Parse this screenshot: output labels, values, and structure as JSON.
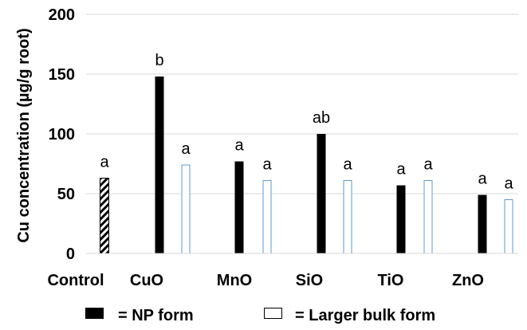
{
  "chart_data": {
    "type": "bar",
    "title": "",
    "xlabel": "",
    "ylabel": "Cu concentration (µg/g root)",
    "ylim": [
      0,
      200
    ],
    "yticks": [
      0,
      50,
      100,
      150,
      200
    ],
    "grid": true,
    "legend_position": "bottom",
    "categories": [
      "Control",
      "CuO",
      "MnO",
      "SiO",
      "TiO",
      "ZnO"
    ],
    "bars": [
      {
        "category": "Control",
        "form": "Control",
        "value": 63,
        "label": "a"
      },
      {
        "category": "CuO",
        "form": "NP form",
        "value": 148,
        "label": "b"
      },
      {
        "category": "CuO",
        "form": "Larger bulk form",
        "value": 74,
        "label": "a"
      },
      {
        "category": "MnO",
        "form": "NP form",
        "value": 77,
        "label": "a"
      },
      {
        "category": "MnO",
        "form": "Larger bulk form",
        "value": 61,
        "label": "a"
      },
      {
        "category": "SiO",
        "form": "NP form",
        "value": 100,
        "label": "ab"
      },
      {
        "category": "SiO",
        "form": "Larger bulk form",
        "value": 61,
        "label": "a"
      },
      {
        "category": "TiO",
        "form": "NP form",
        "value": 57,
        "label": "a"
      },
      {
        "category": "TiO",
        "form": "Larger bulk form",
        "value": 61,
        "label": "a"
      },
      {
        "category": "ZnO",
        "form": "NP form",
        "value": 49,
        "label": "a"
      },
      {
        "category": "ZnO",
        "form": "Larger bulk form",
        "value": 45,
        "label": "a"
      }
    ],
    "legend": [
      {
        "label": "= NP form",
        "style": "np"
      },
      {
        "label": "= Larger bulk form",
        "style": "bulk"
      }
    ],
    "colors": {
      "np_fill": "#000000",
      "bulk_stroke": "#5b9bd5",
      "control_hatch": "#000000",
      "grid": "#d9d9d9",
      "axis": "#d9d9d9"
    }
  }
}
